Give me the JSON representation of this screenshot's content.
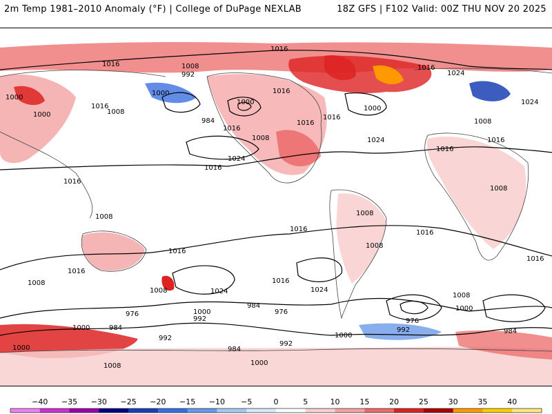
{
  "header": {
    "title": "2m Temp 1981–2010 Anomaly (°F) | College of DuPage NEXLAB",
    "run_info": "18Z GFS | F102 Valid: 00Z THU NOV 20 2025"
  },
  "map": {
    "contour_labels": [
      "1016",
      "1016",
      "1008",
      "992",
      "1000",
      "1016",
      "1024",
      "1016",
      "1000",
      "1016",
      "1016",
      "1024",
      "1000",
      "1016",
      "1008",
      "1000",
      "1008",
      "984",
      "1000",
      "1016",
      "1008",
      "1024",
      "1016",
      "1016",
      "1024",
      "1016",
      "1008",
      "1016",
      "1008",
      "1008",
      "1016",
      "1008",
      "1016",
      "1016",
      "1016",
      "1016",
      "1008",
      "1024",
      "1016",
      "1024",
      "1000",
      "992",
      "984",
      "976",
      "1008",
      "1000",
      "992",
      "976",
      "984",
      "976",
      "992",
      "1000",
      "984",
      "1008",
      "1000",
      "992",
      "984",
      "1000",
      "1000",
      "1008"
    ],
    "colors": {
      "land_outline": "#444444",
      "contour": "#000000",
      "ocean": "#ffffff"
    }
  },
  "legend": {
    "ticks": [
      "−40",
      "−35",
      "−30",
      "−25",
      "−20",
      "−15",
      "−10",
      "−5",
      "0",
      "5",
      "10",
      "15",
      "20",
      "25",
      "30",
      "35",
      "40"
    ],
    "colors": [
      "#ee82ee",
      "#cc33cc",
      "#9900aa",
      "#000080",
      "#1a3fb5",
      "#3b6fe0",
      "#6a9ae8",
      "#a9c8f0",
      "#d8e8f8",
      "#ffffff",
      "#f8d0d0",
      "#f4a2a2",
      "#ec6a6a",
      "#dd2222",
      "#aa0000",
      "#ff9900",
      "#ffcc00",
      "#ffe680"
    ]
  }
}
